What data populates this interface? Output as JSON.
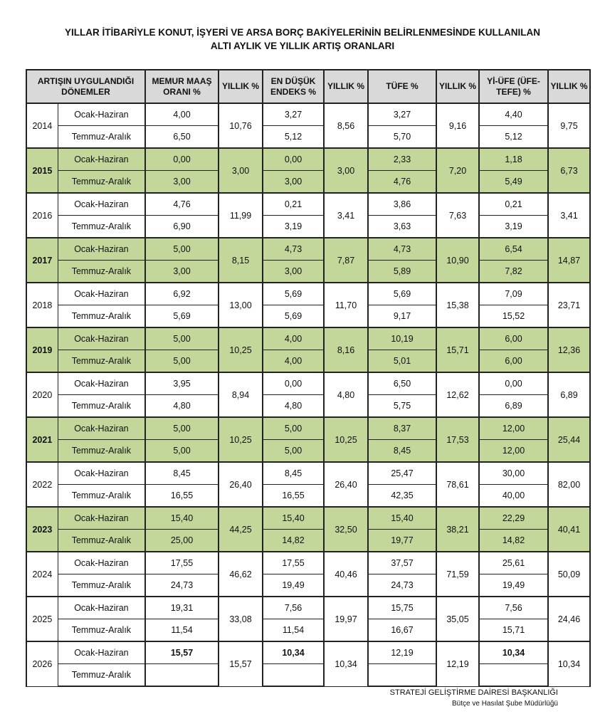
{
  "title": [
    "YILLAR İTİBARİYLE KONUT, İŞYERİ VE ARSA BORÇ BAKİYELERİNİN BELİRLENMESİNDE KULLANILAN",
    "ALTI AYLIK VE YILLIK ARTIŞ ORANLARI"
  ],
  "headers": [
    "ARTIŞIN UYGULANDIĞI DÖNEMLER",
    "MEMUR MAAŞ ORANI %",
    "YILLIK %",
    "EN DÜŞÜK ENDEKS %",
    "YILLIK %",
    "TÜFE %",
    "YILLIK %",
    "Yİ-ÜFE (ÜFE-TEFE) %",
    "YILLIK %"
  ],
  "periods": [
    "Ocak-Haziran",
    "Temmuz-Aralık"
  ],
  "colors": {
    "highlight": "#c4d79b",
    "header": "#d9d9d9"
  },
  "rows": [
    {
      "year": "2014",
      "green": false,
      "memur": [
        "4,00",
        "6,50"
      ],
      "memur_y": "10,76",
      "endeks": [
        "3,27",
        "5,12"
      ],
      "endeks_y": "8,56",
      "tufe": [
        "3,27",
        "5,70"
      ],
      "tufe_y": "9,16",
      "ufe": [
        "4,40",
        "5,12"
      ],
      "ufe_y": "9,75"
    },
    {
      "year": "2015",
      "green": true,
      "memur": [
        "0,00",
        "3,00"
      ],
      "memur_y": "3,00",
      "endeks": [
        "0,00",
        "3,00"
      ],
      "endeks_y": "3,00",
      "tufe": [
        "2,33",
        "4,76"
      ],
      "tufe_y": "7,20",
      "ufe": [
        "1,18",
        "5,49"
      ],
      "ufe_y": "6,73"
    },
    {
      "year": "2016",
      "green": false,
      "memur": [
        "4,76",
        "6,90"
      ],
      "memur_y": "11,99",
      "endeks": [
        "0,21",
        "3,19"
      ],
      "endeks_y": "3,41",
      "tufe": [
        "3,86",
        "3,63"
      ],
      "tufe_y": "7,63",
      "ufe": [
        "0,21",
        "3,19"
      ],
      "ufe_y": "3,41"
    },
    {
      "year": "2017",
      "green": true,
      "memur": [
        "5,00",
        "3,00"
      ],
      "memur_y": "8,15",
      "endeks": [
        "4,73",
        "3,00"
      ],
      "endeks_y": "7,87",
      "tufe": [
        "4,73",
        "5,89"
      ],
      "tufe_y": "10,90",
      "ufe": [
        "6,54",
        "7,82"
      ],
      "ufe_y": "14,87"
    },
    {
      "year": "2018",
      "green": false,
      "memur": [
        "6,92",
        "5,69"
      ],
      "memur_y": "13,00",
      "endeks": [
        "5,69",
        "5,69"
      ],
      "endeks_y": "11,70",
      "tufe": [
        "5,69",
        "9,17"
      ],
      "tufe_y": "15,38",
      "ufe": [
        "7,09",
        "15,52"
      ],
      "ufe_y": "23,71"
    },
    {
      "year": "2019",
      "green": true,
      "memur": [
        "5,00",
        "5,00"
      ],
      "memur_y": "10,25",
      "endeks": [
        "4,00",
        "4,00"
      ],
      "endeks_y": "8,16",
      "tufe": [
        "10,19",
        "5,01"
      ],
      "tufe_y": "15,71",
      "ufe": [
        "6,00",
        "6,00"
      ],
      "ufe_y": "12,36"
    },
    {
      "year": "2020",
      "green": false,
      "memur": [
        "3,95",
        "4,80"
      ],
      "memur_y": "8,94",
      "endeks": [
        "0,00",
        "4,80"
      ],
      "endeks_y": "4,80",
      "tufe": [
        "6,50",
        "5,75"
      ],
      "tufe_y": "12,62",
      "ufe": [
        "0,00",
        "6,89"
      ],
      "ufe_y": "6,89"
    },
    {
      "year": "2021",
      "green": true,
      "memur": [
        "5,00",
        "5,00"
      ],
      "memur_y": "10,25",
      "endeks": [
        "5,00",
        "5,00"
      ],
      "endeks_y": "10,25",
      "tufe": [
        "8,37",
        "8,45"
      ],
      "tufe_y": "17,53",
      "ufe": [
        "12,00",
        "12,00"
      ],
      "ufe_y": "25,44"
    },
    {
      "year": "2022",
      "green": false,
      "memur": [
        "8,45",
        "16,55"
      ],
      "memur_y": "26,40",
      "endeks": [
        "8,45",
        "16,55"
      ],
      "endeks_y": "26,40",
      "tufe": [
        "25,47",
        "42,35"
      ],
      "tufe_y": "78,61",
      "ufe": [
        "30,00",
        "40,00"
      ],
      "ufe_y": "82,00"
    },
    {
      "year": "2023",
      "green": true,
      "memur": [
        "15,40",
        "25,00"
      ],
      "memur_y": "44,25",
      "endeks": [
        "15,40",
        "14,82"
      ],
      "endeks_y": "32,50",
      "tufe": [
        "15,40",
        "19,77"
      ],
      "tufe_y": "38,21",
      "ufe": [
        "22,29",
        "14,82"
      ],
      "ufe_y": "40,41"
    },
    {
      "year": "2024",
      "green": false,
      "memur": [
        "17,55",
        "24,73"
      ],
      "memur_y": "46,62",
      "endeks": [
        "17,55",
        "19,49"
      ],
      "endeks_y": "40,46",
      "tufe": [
        "37,57",
        "24,73"
      ],
      "tufe_y": "71,59",
      "ufe": [
        "25,61",
        "19,49"
      ],
      "ufe_y": "50,09"
    },
    {
      "year": "2025",
      "green": false,
      "memur": [
        "19,31",
        "11,54"
      ],
      "memur_y": "33,08",
      "endeks": [
        "7,56",
        "11,54"
      ],
      "endeks_y": "19,97",
      "tufe": [
        "15,75",
        "16,67"
      ],
      "tufe_y": "35,05",
      "ufe": [
        "7,56",
        "15,71"
      ],
      "ufe_y": "24,46"
    },
    {
      "year": "2026",
      "green": false,
      "bold": [
        "memur",
        "endeks",
        "ufe"
      ],
      "memur": [
        "15,57",
        ""
      ],
      "memur_y": "15,57",
      "endeks": [
        "10,34",
        ""
      ],
      "endeks_y": "10,34",
      "tufe": [
        "12,19",
        ""
      ],
      "tufe_y": "12,19",
      "ufe": [
        "10,34",
        ""
      ],
      "ufe_y": "10,34"
    }
  ],
  "footer": {
    "line1": "STRATEJİ GELİŞTİRME DAİRESİ BAŞKANLIĞI",
    "line2": "Bütçe ve Hasılat Şube Müdürlüğü"
  }
}
